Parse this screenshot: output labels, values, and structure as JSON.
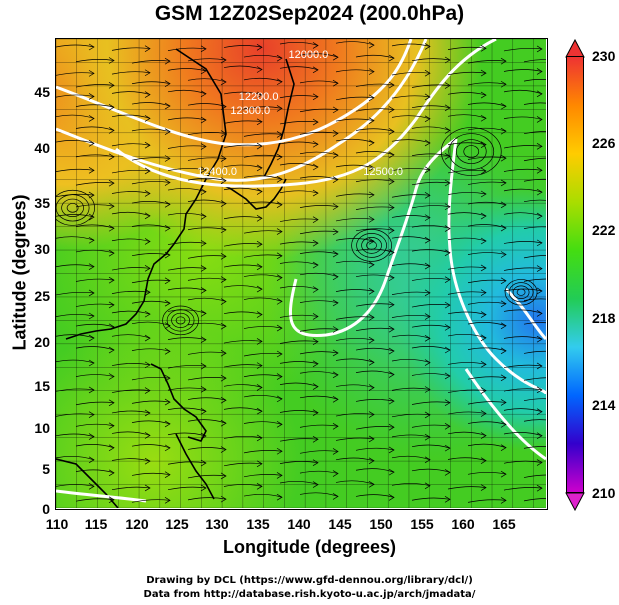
{
  "title": "GSM 12Z02Sep2024 (200.0hPa)",
  "xlabel": "Longitude (degrees)",
  "ylabel": "Latitude  (degrees)",
  "credits": [
    "Drawing by DCL (https://www.gfd-dennou.org/library/dcl/)",
    "Data from http://database.rish.kyoto-u.ac.jp/arch/jmadata/"
  ],
  "chart_data": {
    "type": "heatmap",
    "title": "GSM 12Z02Sep2024 (200.0hPa)",
    "xlabel": "Longitude (degrees)",
    "ylabel": "Latitude  (degrees)",
    "xlim": [
      110,
      169
    ],
    "ylim": [
      0,
      50
    ],
    "x_ticks": [
      "110",
      "115",
      "120",
      "125",
      "130",
      "135",
      "140",
      "145",
      "150",
      "155",
      "160",
      "165"
    ],
    "y_ticks": [
      "45",
      "40",
      "35",
      "30",
      "25",
      "20",
      "15",
      "10",
      "5",
      "0"
    ],
    "colorbar": {
      "min": 210,
      "max": 230,
      "ticks": [
        "230",
        "226",
        "222",
        "218",
        "214",
        "210"
      ],
      "colors": [
        "#cc00cc",
        "#3300cc",
        "#0066ff",
        "#33ccee",
        "#22cc55",
        "#44dd11",
        "#aadd00",
        "#ffcc00",
        "#ff8800",
        "#ee3333"
      ]
    },
    "contour_labels": [
      {
        "text": "12200.0",
        "lon": 132,
        "lat": 43.5
      },
      {
        "text": "12000.0",
        "lon": 138,
        "lat": 48
      },
      {
        "text": "12300.0",
        "lon": 131,
        "lat": 42
      },
      {
        "text": "12400.0",
        "lon": 127,
        "lat": 35.5
      },
      {
        "text": "12500.0",
        "lon": 147,
        "lat": 35.5
      }
    ]
  }
}
